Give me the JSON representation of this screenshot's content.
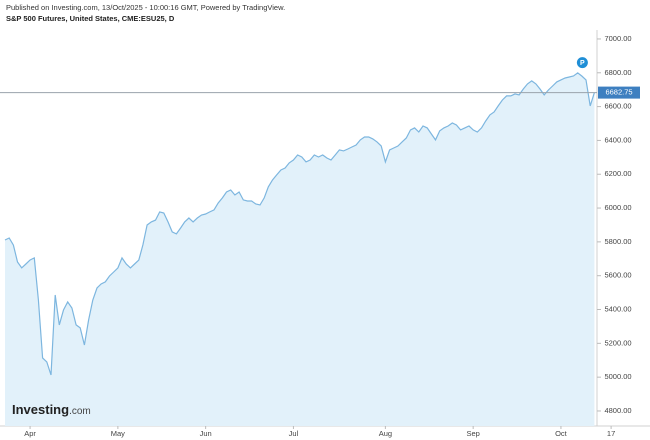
{
  "header": {
    "published": "Published on Investing.com, 13/Oct/2025 - 10:00:16 GMT, Powered by TradingView.",
    "logo_main": "Investing",
    "logo_suffix": ".com"
  },
  "chart_data": {
    "type": "area",
    "title": "S&P 500 Futures, United States, CME:ESU25, D",
    "badge": "P",
    "categories": [
      null,
      null,
      null,
      null,
      null,
      null,
      "Apr",
      null,
      null,
      null,
      null,
      null,
      null,
      null,
      null,
      null,
      null,
      null,
      null,
      null,
      null,
      null,
      null,
      null,
      null,
      null,
      null,
      "May",
      null,
      null,
      null,
      null,
      null,
      null,
      null,
      null,
      null,
      null,
      null,
      null,
      null,
      null,
      null,
      null,
      null,
      null,
      null,
      null,
      "Jun",
      null,
      null,
      null,
      null,
      null,
      null,
      null,
      null,
      null,
      null,
      null,
      null,
      null,
      null,
      null,
      null,
      null,
      null,
      null,
      null,
      "Jul",
      null,
      null,
      null,
      null,
      null,
      null,
      null,
      null,
      null,
      null,
      null,
      null,
      null,
      null,
      null,
      null,
      null,
      null,
      null,
      null,
      null,
      "Aug",
      null,
      null,
      null,
      null,
      null,
      null,
      null,
      null,
      null,
      null,
      null,
      null,
      null,
      null,
      null,
      null,
      null,
      null,
      null,
      null,
      "Sep",
      null,
      null,
      null,
      null,
      null,
      null,
      null,
      null,
      null,
      null,
      null,
      null,
      null,
      null,
      null,
      null,
      null,
      null,
      null,
      null,
      "Oct",
      null,
      null,
      null,
      null,
      null,
      null,
      null,
      null,
      null,
      null,
      null,
      "17"
    ],
    "series": [
      {
        "color": "#7db6df",
        "fill": "#e2f1fa",
        "values": [
          5811,
          5823,
          5781,
          5681,
          5646,
          5669,
          5693,
          5705,
          5456,
          5113,
          5090,
          5013,
          5486,
          5309,
          5397,
          5445,
          5409,
          5309,
          5291,
          5190,
          5338,
          5456,
          5527,
          5551,
          5563,
          5598,
          5622,
          5646,
          5705,
          5669,
          5646,
          5669,
          5693,
          5782,
          5900,
          5918,
          5929,
          5977,
          5971,
          5918,
          5859,
          5847,
          5882,
          5918,
          5941,
          5918,
          5941,
          5959,
          5965,
          5977,
          5989,
          6030,
          6060,
          6095,
          6107,
          6077,
          6095,
          6048,
          6042,
          6042,
          6024,
          6018,
          6060,
          6125,
          6166,
          6196,
          6225,
          6237,
          6267,
          6284,
          6314,
          6302,
          6273,
          6284,
          6314,
          6302,
          6314,
          6296,
          6284,
          6314,
          6344,
          6338,
          6349,
          6361,
          6373,
          6403,
          6420,
          6420,
          6409,
          6391,
          6367,
          6273,
          6344,
          6355,
          6367,
          6391,
          6414,
          6462,
          6474,
          6450,
          6485,
          6474,
          6438,
          6403,
          6456,
          6474,
          6485,
          6503,
          6491,
          6462,
          6474,
          6485,
          6462,
          6450,
          6474,
          6515,
          6551,
          6568,
          6604,
          6639,
          6663,
          6663,
          6675,
          6669,
          6704,
          6734,
          6752,
          6734,
          6704,
          6669,
          6698,
          6722,
          6746,
          6758,
          6769,
          6775,
          6781,
          6799,
          6781,
          6758,
          6604,
          6682.75,
          null,
          null,
          null,
          null
        ]
      }
    ],
    "ylim": [
      4720,
      7050
    ],
    "yticks": [
      {
        "value": 4800,
        "label": "4800.00"
      },
      {
        "value": 5000,
        "label": "5000.00"
      },
      {
        "value": 5200,
        "label": "5200.00"
      },
      {
        "value": 5400,
        "label": "5400.00"
      },
      {
        "value": 5600,
        "label": "5600.00"
      },
      {
        "value": 5800,
        "label": "5800.00"
      },
      {
        "value": 6000,
        "label": "6000.00"
      },
      {
        "value": 6200,
        "label": "6200.00"
      },
      {
        "value": 6400,
        "label": "6400.00"
      },
      {
        "value": 6600,
        "label": "6600.00"
      },
      {
        "value": 6800,
        "label": "6800.00"
      },
      {
        "value": 7000,
        "label": "7000.00"
      }
    ],
    "grid": false
  }
}
